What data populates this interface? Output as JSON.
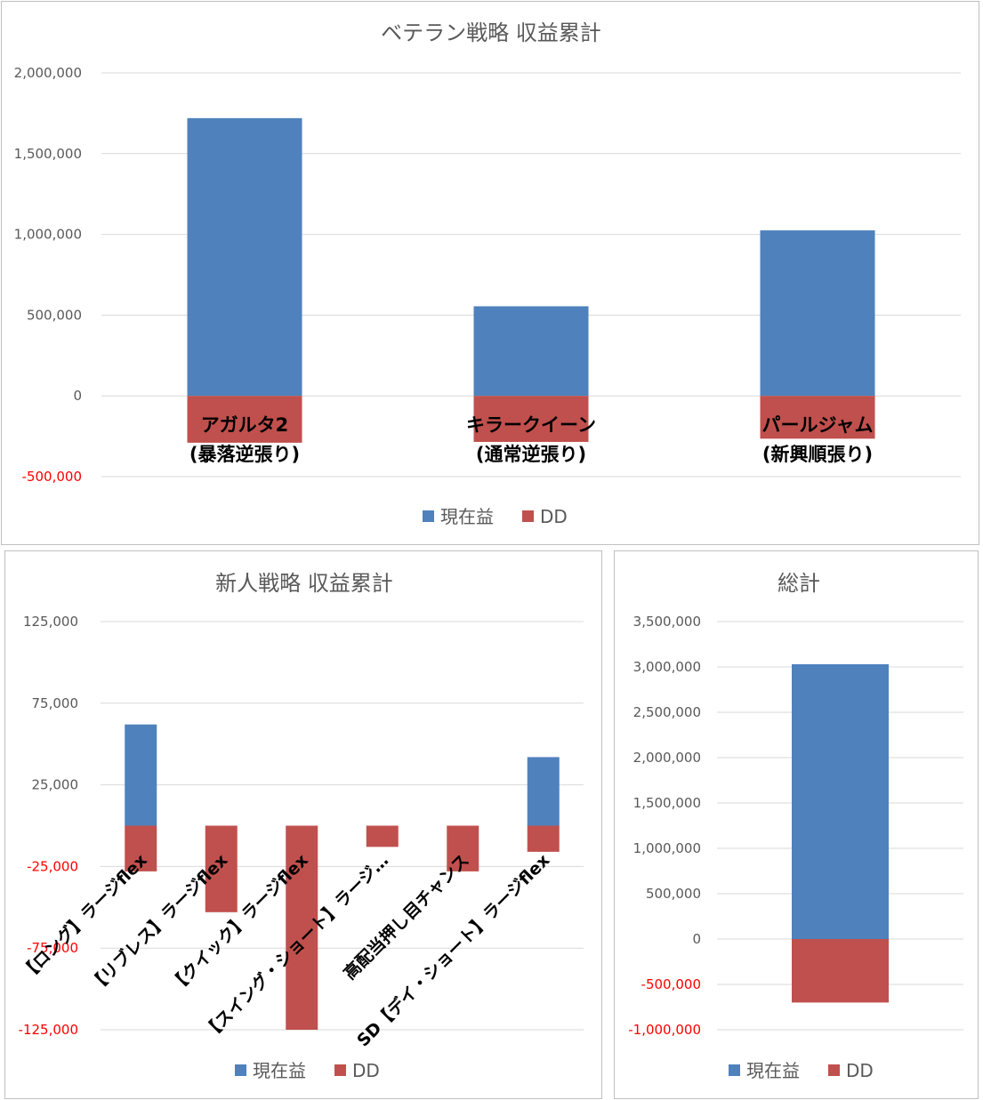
{
  "colors": {
    "profit": "#4f81bd",
    "dd": "#c0504d"
  },
  "legend": {
    "profit": "現在益",
    "dd": "DD"
  },
  "chart_data": [
    {
      "id": "veteran",
      "type": "bar",
      "title": "ベテラン戦略 収益累計",
      "categories": [
        [
          "アガルタ2",
          "(暴落逆張り)"
        ],
        [
          "キラークイーン",
          "(通常逆張り)"
        ],
        [
          "パールジャム",
          "(新興順張り)"
        ]
      ],
      "series": [
        {
          "name": "現在益",
          "values": [
            1720000,
            555000,
            1025000
          ]
        },
        {
          "name": "DD",
          "values": [
            -290000,
            -285000,
            -265000
          ]
        }
      ],
      "ylim": [
        -500000,
        2000000
      ],
      "yticks": [
        2000000,
        1500000,
        1000000,
        500000,
        0,
        -500000
      ],
      "ytick_labels": [
        "2,000,000",
        "1,500,000",
        "1,000,000",
        "500,000",
        "0",
        "-500,000"
      ],
      "grid": true,
      "legend_position": "bottom"
    },
    {
      "id": "newbie",
      "type": "bar",
      "title": "新人戦略 収益累計",
      "categories": [
        "【ロング】ラージflex",
        "【リブレス】ラージflex",
        "【クイック】ラージflex",
        "【スイング・ショート】ラージ…",
        "高配当押し目チャンス",
        "SD【デイ・ショート】ラージflex"
      ],
      "series": [
        {
          "name": "現在益",
          "values": [
            62000,
            0,
            0,
            0,
            0,
            42000
          ]
        },
        {
          "name": "DD",
          "values": [
            -28000,
            -53000,
            -125000,
            -13000,
            -28000,
            -16000
          ]
        }
      ],
      "ylim": [
        -125000,
        125000
      ],
      "yticks": [
        125000,
        75000,
        25000,
        -25000,
        -75000,
        -125000
      ],
      "ytick_labels": [
        "125,000",
        "75,000",
        "25,000",
        "-25,000",
        "-75,000",
        "-125,000"
      ],
      "grid": true,
      "legend_position": "bottom"
    },
    {
      "id": "total",
      "type": "bar",
      "title": "総計",
      "categories": [
        ""
      ],
      "series": [
        {
          "name": "現在益",
          "values": [
            3030000
          ]
        },
        {
          "name": "DD",
          "values": [
            -700000
          ]
        }
      ],
      "ylim": [
        -1000000,
        3500000
      ],
      "yticks": [
        3500000,
        3000000,
        2500000,
        2000000,
        1500000,
        1000000,
        500000,
        0,
        -500000,
        -1000000
      ],
      "ytick_labels": [
        "3,500,000",
        "3,000,000",
        "2,500,000",
        "2,000,000",
        "1,500,000",
        "1,000,000",
        "500,000",
        "0",
        "-500,000",
        "-1,000,000"
      ],
      "grid": true,
      "legend_position": "bottom"
    }
  ]
}
